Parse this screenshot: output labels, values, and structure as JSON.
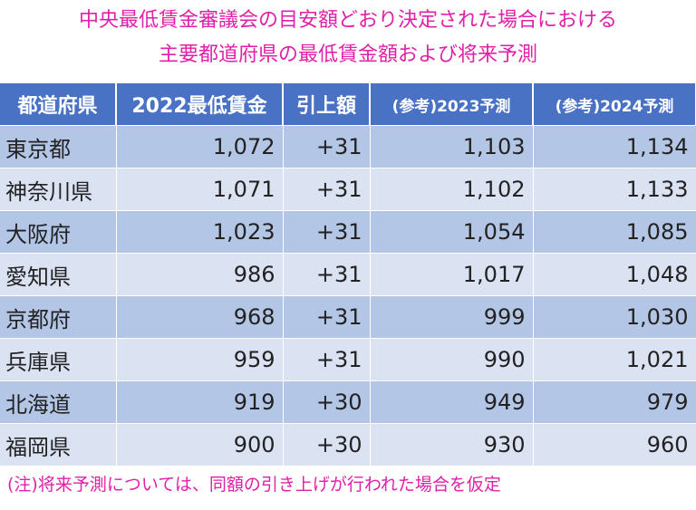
{
  "header": {
    "title_line1": "中央最低賃金審議会の目安額どおり決定された場合における",
    "title_line2": "主要都道府県の最低賃金額および将来予測"
  },
  "table": {
    "columns": [
      "都道府県",
      "2022最低賃金",
      "引上額",
      "(参考)2023予測",
      "(参考)2024予測"
    ],
    "rows": [
      [
        "東京都",
        "1,072",
        "+31",
        "1,103",
        "1,134"
      ],
      [
        "神奈川県",
        "1,071",
        "+31",
        "1,102",
        "1,133"
      ],
      [
        "大阪府",
        "1,023",
        "+31",
        "1,054",
        "1,085"
      ],
      [
        "愛知県",
        "986",
        "+31",
        "1,017",
        "1,048"
      ],
      [
        "京都府",
        "968",
        "+31",
        "999",
        "1,030"
      ],
      [
        "兵庫県",
        "959",
        "+31",
        "990",
        "1,021"
      ],
      [
        "北海道",
        "919",
        "+30",
        "949",
        "979"
      ],
      [
        "福岡県",
        "900",
        "+30",
        "930",
        "960"
      ]
    ]
  },
  "footer": {
    "note": "(注)将来予測については、同額の引き上げが行われた場合を仮定"
  }
}
